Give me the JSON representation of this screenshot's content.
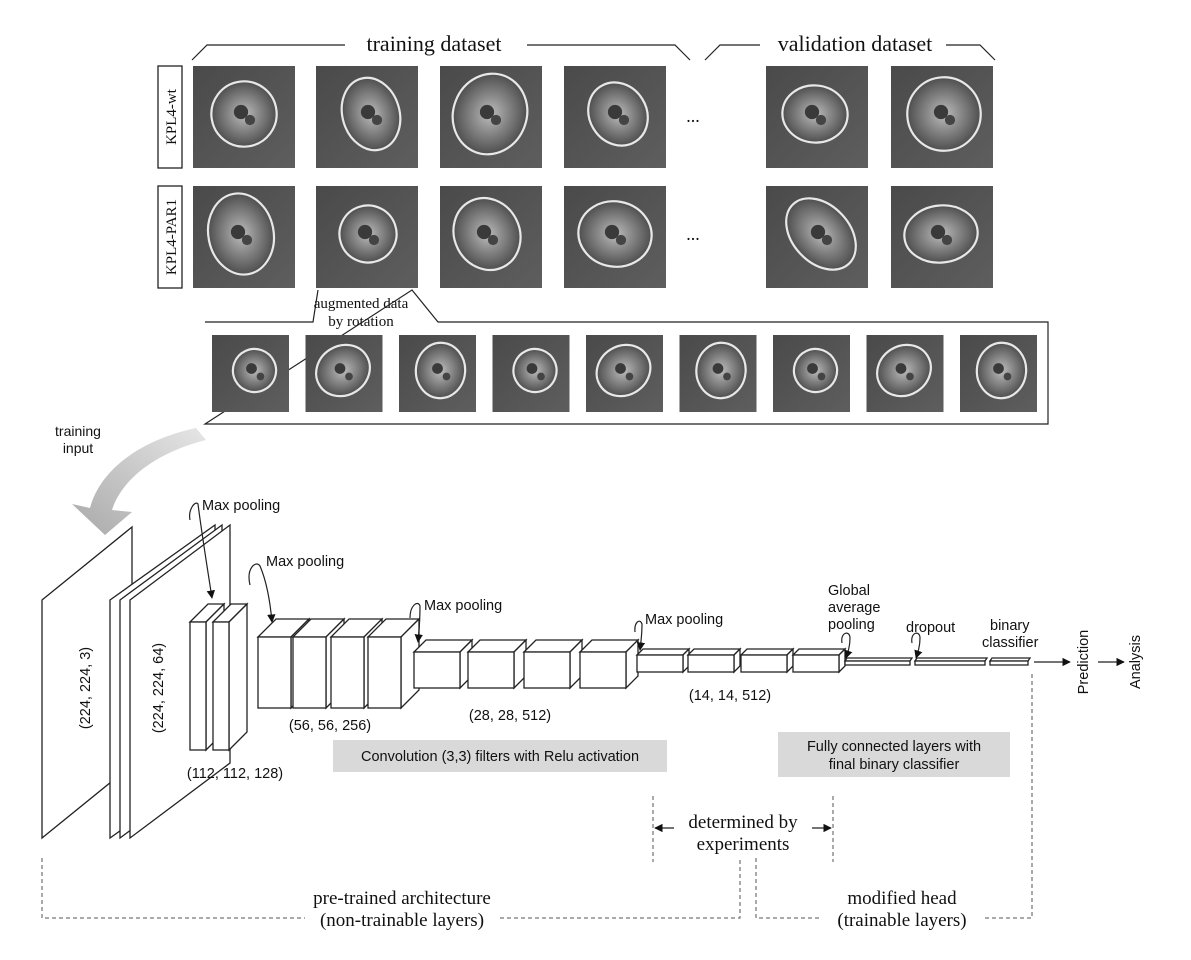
{
  "datasets": {
    "training_label": "training dataset",
    "validation_label": "validation dataset",
    "ellipsis": "...",
    "rows": [
      {
        "label": "KPL4-wt"
      },
      {
        "label": "KPL4-PAR1"
      }
    ]
  },
  "augmentation": {
    "caption_line1": "augmented data",
    "caption_line2": "by rotation",
    "count": 9
  },
  "training_input": {
    "line1": "training",
    "line2": "input"
  },
  "network": {
    "pooling_label": "Max pooling",
    "shapes": {
      "input": "(224, 224, 3)",
      "block1": "(224, 224, 64)",
      "block2": "(112, 112, 128)",
      "block3": "(56, 56, 256)",
      "block4": "(28, 28, 512)",
      "block5": "(14, 14, 512)"
    },
    "conv_caption": "Convolution (3,3) filters with Relu activation",
    "gap_line1": "Global",
    "gap_line2": "average",
    "gap_line3": "pooling",
    "dropout": "dropout",
    "binary_line1": "binary",
    "binary_line2": "classifier",
    "prediction": "Prediction",
    "analysis": "Analysis",
    "fc_caption_line1": "Fully connected layers with",
    "fc_caption_line2": "final binary classifier"
  },
  "brackets": {
    "determined_line1": "determined by",
    "determined_line2": "experiments",
    "pretrained_line1": "pre-trained architecture",
    "pretrained_line2": "(non-trainable layers)",
    "head_line1": "modified head",
    "head_line2": "(trainable layers)"
  }
}
